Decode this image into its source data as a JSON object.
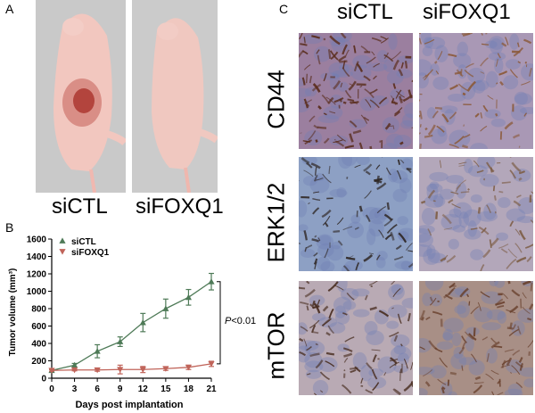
{
  "panels": {
    "a": {
      "letter": "A",
      "labels": [
        "siCTL",
        "siFOXQ1"
      ]
    },
    "b": {
      "letter": "B"
    },
    "c": {
      "letter": "C",
      "columns": [
        "siCTL",
        "siFOXQ1"
      ],
      "rows": [
        "CD44",
        "ERK1/2",
        "mTOR"
      ]
    }
  },
  "chart_data": {
    "type": "line",
    "xlabel": "Days post implantation",
    "ylabel": "Tumor volume (mm³)",
    "x": [
      0,
      3,
      6,
      9,
      12,
      15,
      18,
      21
    ],
    "xticks": [
      0,
      3,
      6,
      9,
      12,
      15,
      18,
      21
    ],
    "yticks": [
      0,
      200,
      400,
      600,
      800,
      1000,
      1200,
      1400,
      1600
    ],
    "ylim": [
      0,
      1600
    ],
    "xlim": [
      0,
      21
    ],
    "legend_position": "top-left",
    "series": [
      {
        "name": "siCTL",
        "marker": "triangle-up",
        "color": "#4e7a57",
        "values": [
          90,
          150,
          310,
          420,
          640,
          800,
          930,
          1110
        ],
        "errors": [
          10,
          20,
          75,
          55,
          105,
          110,
          90,
          95
        ]
      },
      {
        "name": "siFOXQ1",
        "marker": "triangle-down",
        "color": "#c0645a",
        "values": [
          90,
          95,
          95,
          100,
          100,
          110,
          125,
          165
        ],
        "errors": [
          10,
          10,
          15,
          50,
          35,
          20,
          25,
          30
        ]
      }
    ],
    "annotation": {
      "prefix": "P",
      "suffix": "<0.01"
    }
  }
}
